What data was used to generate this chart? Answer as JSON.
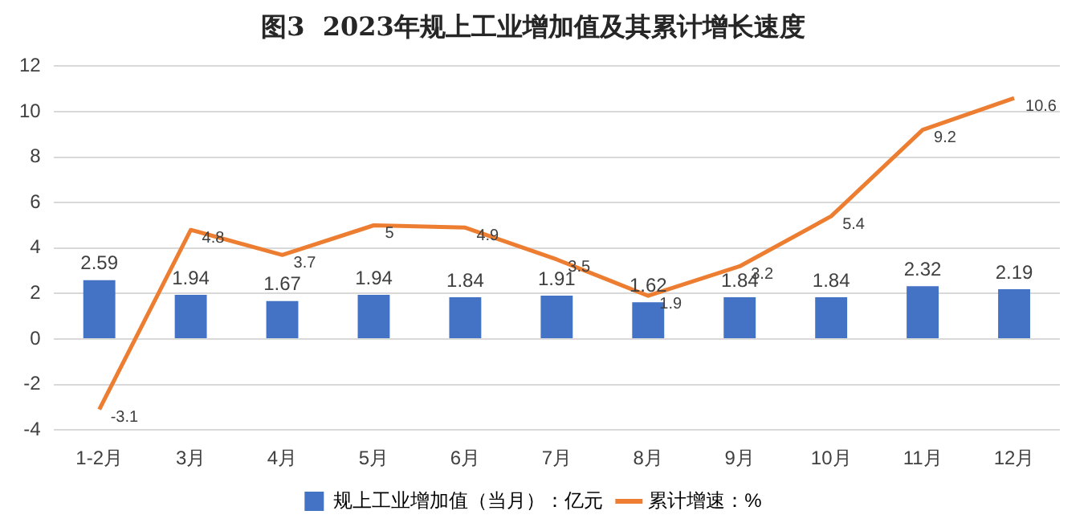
{
  "chart_data": {
    "type": "bar",
    "title": "图3  2023年规上工业增加值及其累计增长速度",
    "categories": [
      "1-2月",
      "3月",
      "4月",
      "5月",
      "6月",
      "7月",
      "8月",
      "9月",
      "10月",
      "11月",
      "12月"
    ],
    "series": [
      {
        "name": "规上工业增加值（当月）：亿元",
        "color": "#4472c4",
        "values": [
          2.59,
          1.94,
          1.67,
          1.94,
          1.84,
          1.91,
          1.62,
          1.84,
          1.84,
          2.32,
          2.19
        ]
      },
      {
        "name": "累计增速：%",
        "type": "line",
        "color": "#ed7d31",
        "values": [
          -3.1,
          4.8,
          3.7,
          5,
          4.9,
          3.5,
          1.9,
          3.2,
          5.4,
          9.2,
          10.6
        ]
      }
    ],
    "ylim": [
      -4,
      12
    ],
    "yticks": [
      -4,
      -2,
      0,
      2,
      4,
      6,
      8,
      10,
      12
    ],
    "grid": "y",
    "legend": "bottom",
    "marker": "none",
    "line_style": "solid",
    "data_labels": true
  }
}
